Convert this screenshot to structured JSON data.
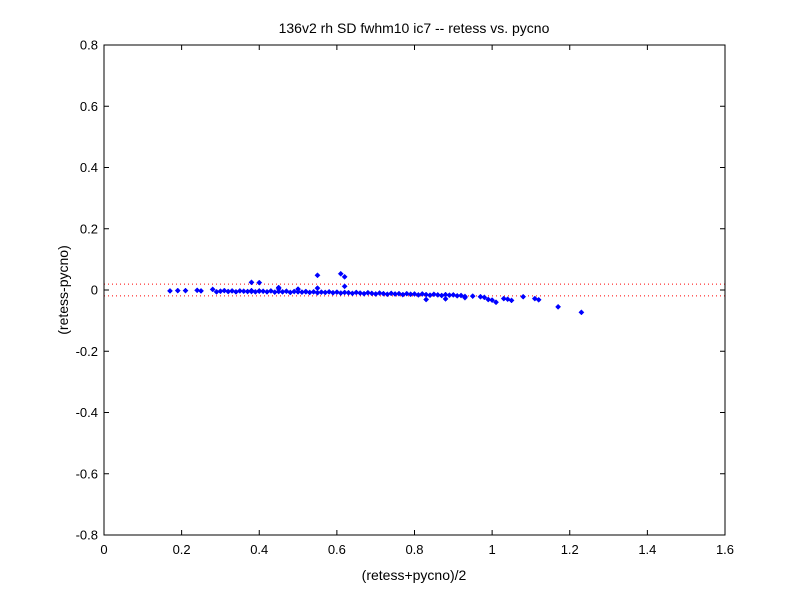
{
  "chart_data": {
    "type": "scatter",
    "title": "136v2 rh SD fwhm10 ic7 -- retess vs. pycno",
    "xlabel": "(retess+pycno)/2",
    "ylabel": "(retess-pycno)",
    "xlim": [
      0,
      1.6
    ],
    "ylim": [
      -0.8,
      0.8
    ],
    "xticks": [
      0,
      0.2,
      0.4,
      0.6,
      0.8,
      1,
      1.2,
      1.4,
      1.6
    ],
    "yticks": [
      -0.8,
      -0.6,
      -0.4,
      -0.2,
      0,
      0.2,
      0.4,
      0.6,
      0.8
    ],
    "xtick_labels": [
      "0",
      "0.2",
      "0.4",
      "0.6",
      "0.8",
      "1",
      "1.2",
      "1.4",
      "1.6"
    ],
    "ytick_labels": [
      "-0.8",
      "-0.6",
      "-0.4",
      "-0.2",
      "0",
      "0.2",
      "0.4",
      "0.6",
      "0.8"
    ],
    "grid": false,
    "legend": "none",
    "reference_lines": [
      {
        "y": 0.019,
        "style": "dotted",
        "color": "#ff0000"
      },
      {
        "y": -0.019,
        "style": "dotted",
        "color": "#ff0000"
      }
    ],
    "marker_color": "#0000ff",
    "series": [
      {
        "marker": "diamond",
        "x": [
          0.17,
          0.19,
          0.21,
          0.24,
          0.25,
          0.28,
          0.29,
          0.3,
          0.31,
          0.32,
          0.33,
          0.34,
          0.35,
          0.36,
          0.37,
          0.38,
          0.38,
          0.39,
          0.4,
          0.4,
          0.41,
          0.42,
          0.43,
          0.44,
          0.45,
          0.45,
          0.46,
          0.47,
          0.48,
          0.49,
          0.5,
          0.5,
          0.51,
          0.52,
          0.53,
          0.54,
          0.55,
          0.55,
          0.56,
          0.57,
          0.58,
          0.59,
          0.6,
          0.61,
          0.62,
          0.62,
          0.63,
          0.64,
          0.65,
          0.66,
          0.67,
          0.68,
          0.69,
          0.7,
          0.71,
          0.72,
          0.73,
          0.74,
          0.75,
          0.76,
          0.77,
          0.78,
          0.79,
          0.8,
          0.81,
          0.82,
          0.83,
          0.84,
          0.85,
          0.86,
          0.87,
          0.88,
          0.89,
          0.9,
          0.91,
          0.92,
          0.93,
          0.95,
          0.97,
          0.98,
          0.99,
          1.0,
          1.01,
          1.03,
          1.04,
          1.05,
          1.08,
          1.11,
          1.12,
          1.17,
          1.23,
          0.38,
          0.4,
          0.55,
          0.61,
          0.62,
          0.5,
          0.45,
          0.52,
          0.83,
          0.88,
          0.93
        ],
        "y": [
          -0.003,
          -0.002,
          -0.002,
          -0.001,
          -0.003,
          0.002,
          -0.006,
          -0.004,
          -0.002,
          -0.005,
          -0.003,
          -0.006,
          -0.003,
          -0.004,
          -0.005,
          -0.002,
          0.025,
          -0.006,
          -0.003,
          0.024,
          -0.004,
          -0.006,
          -0.003,
          -0.007,
          -0.005,
          0.008,
          -0.006,
          -0.004,
          -0.008,
          -0.005,
          -0.006,
          0.003,
          -0.007,
          -0.005,
          -0.008,
          -0.006,
          -0.009,
          0.006,
          -0.007,
          -0.008,
          -0.006,
          -0.009,
          -0.007,
          -0.01,
          -0.008,
          0.012,
          -0.009,
          -0.011,
          -0.008,
          -0.01,
          -0.012,
          -0.009,
          -0.011,
          -0.013,
          -0.01,
          -0.012,
          -0.014,
          -0.011,
          -0.013,
          -0.012,
          -0.015,
          -0.012,
          -0.014,
          -0.013,
          -0.016,
          -0.013,
          -0.015,
          -0.017,
          -0.014,
          -0.016,
          -0.018,
          -0.015,
          -0.017,
          -0.016,
          -0.019,
          -0.018,
          -0.021,
          -0.02,
          -0.022,
          -0.024,
          -0.031,
          -0.033,
          -0.04,
          -0.028,
          -0.03,
          -0.034,
          -0.022,
          -0.028,
          -0.032,
          -0.055,
          -0.073,
          -0.005,
          -0.004,
          0.048,
          0.053,
          0.043,
          -0.006,
          0.004,
          -0.006,
          -0.031,
          -0.029,
          -0.025
        ]
      }
    ]
  }
}
